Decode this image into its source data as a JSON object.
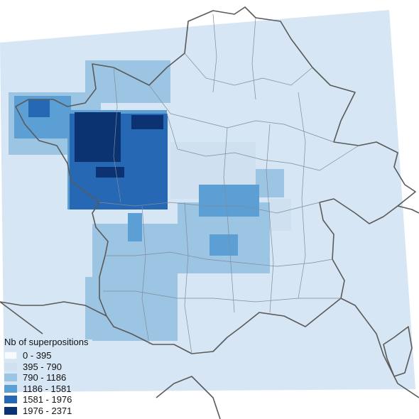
{
  "legend": {
    "title": "Nb of superpositions",
    "classes": [
      {
        "label": "0 - 395",
        "color": "#f6f9fd"
      },
      {
        "label": "395 - 790",
        "color": "#cfe1f1"
      },
      {
        "label": "790 - 1186",
        "color": "#9cc5e3"
      },
      {
        "label": "1186 - 1581",
        "color": "#5c9fd4"
      },
      {
        "label": "1581 - 1976",
        "color": "#2668b4"
      },
      {
        "label": "1976 - 2371",
        "color": "#0c3371"
      }
    ]
  },
  "colors": {
    "footprint": "#d6e6f4",
    "borders": "#5a5a5a",
    "department_borders": "#7f8c9b"
  }
}
